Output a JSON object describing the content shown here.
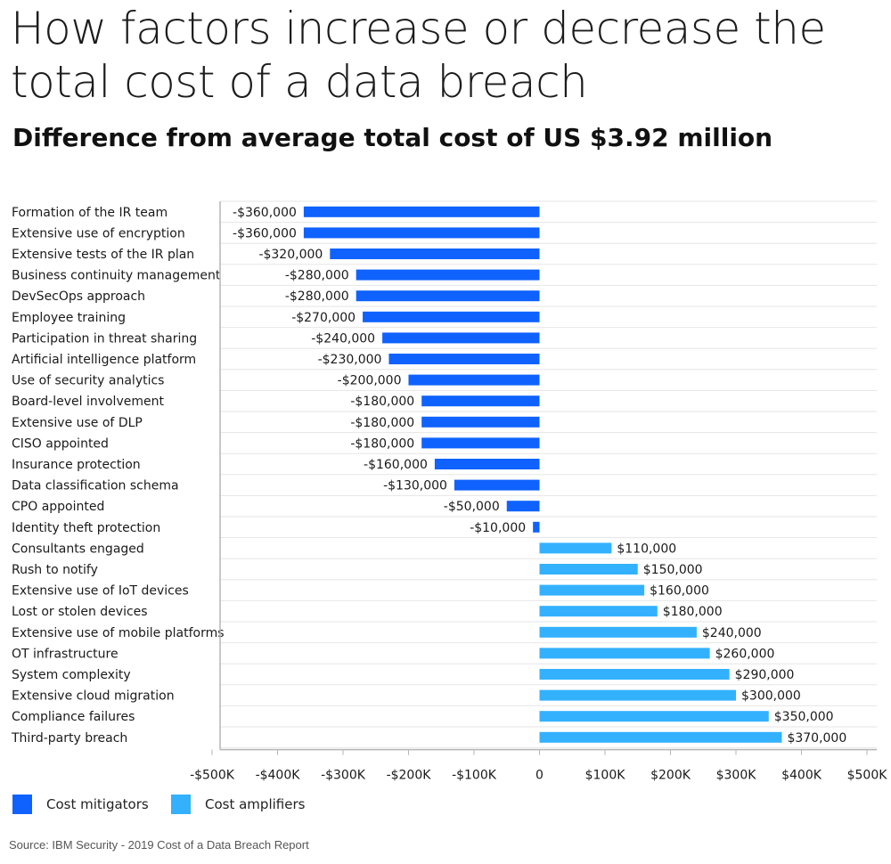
{
  "title": "How factors increase or decrease the total cost of a data breach",
  "subtitle": "Difference from average total cost of US $3.92 million",
  "legend": {
    "mitigators": "Cost mitigators",
    "amplifiers": "Cost amplifiers"
  },
  "source": "Source: IBM Security - 2019 Cost of a Data Breach Report",
  "colors": {
    "mitigators": "#0f62fe",
    "amplifiers": "#33b1ff",
    "grid": "#e6e6e6",
    "axis": "#b5b5b5"
  },
  "chart_data": {
    "type": "bar",
    "orientation": "horizontal",
    "xlim": [
      -500000,
      500000
    ],
    "x_ticks": [
      -500000,
      -400000,
      -300000,
      -200000,
      -100000,
      0,
      100000,
      200000,
      300000,
      400000,
      500000
    ],
    "x_tick_labels": [
      "-$500K",
      "-$400K",
      "-$300K",
      "-$200K",
      "-$100K",
      "0",
      "$100K",
      "$200K",
      "$300K",
      "$400K",
      "$500K"
    ],
    "grid": true,
    "legend_position": "bottom-left",
    "categories": [
      "Formation of the IR team",
      "Extensive use of encryption",
      "Extensive tests of the IR plan",
      "Business continuity management",
      "DevSecOps approach",
      "Employee training",
      "Participation in threat sharing",
      "Artificial intelligence platform",
      "Use of security analytics",
      "Board-level involvement",
      "Extensive use of DLP",
      "CISO appointed",
      "Insurance protection",
      "Data classification schema",
      "CPO appointed",
      "Identity theft protection",
      "Consultants engaged",
      "Rush to notify",
      "Extensive use of IoT devices",
      "Lost or stolen devices",
      "Extensive use of mobile platforms",
      "OT infrastructure",
      "System complexity",
      "Extensive cloud migration",
      "Compliance failures",
      "Third-party breach"
    ],
    "values": [
      -360000,
      -360000,
      -320000,
      -280000,
      -280000,
      -270000,
      -240000,
      -230000,
      -200000,
      -180000,
      -180000,
      -180000,
      -160000,
      -130000,
      -50000,
      -10000,
      110000,
      150000,
      160000,
      180000,
      240000,
      260000,
      290000,
      300000,
      350000,
      370000
    ],
    "value_labels": [
      "-$360,000",
      "-$360,000",
      "-$320,000",
      "-$280,000",
      "-$280,000",
      "-$270,000",
      "-$240,000",
      "-$230,000",
      "-$200,000",
      "-$180,000",
      "-$180,000",
      "-$180,000",
      "-$160,000",
      "-$130,000",
      "-$50,000",
      "-$10,000",
      "$110,000",
      "$150,000",
      "$160,000",
      "$180,000",
      "$240,000",
      "$260,000",
      "$290,000",
      "$300,000",
      "$350,000",
      "$370,000"
    ]
  }
}
